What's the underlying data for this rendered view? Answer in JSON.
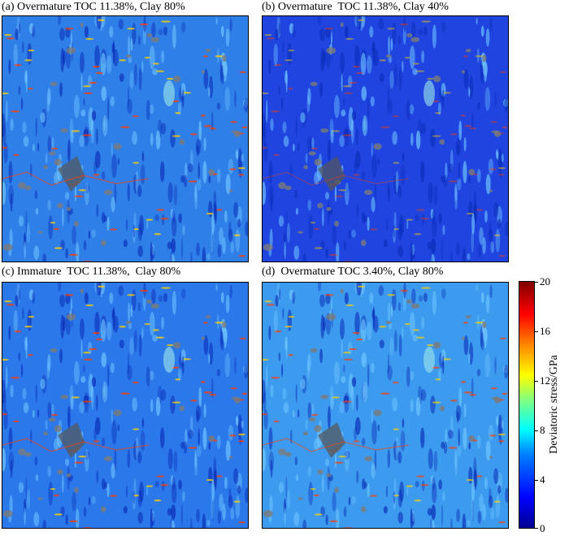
{
  "panels": [
    {
      "title": "(a) Overmature TOC 11.38%, Clay 80%",
      "base": "#2f7fe8",
      "hot": 1.0
    },
    {
      "title": "(b) Overmature  TOC 11.38%, Clay 40%",
      "base": "#1f44e0",
      "hot": 0.6
    },
    {
      "title": "(c) Immature  TOC 11.38%,  Clay 80%",
      "base": "#2b78ea",
      "hot": 1.0
    },
    {
      "title": "(d)  Overmature TOC 3.40%, Clay 80%",
      "base": "#3d9bef",
      "hot": 0.9
    }
  ],
  "colorbar": {
    "label": "Deviatoric stress/GPa",
    "ticks": [
      "20",
      "16",
      "12",
      "8",
      "4",
      "0"
    ],
    "min": 0,
    "max": 20
  }
}
